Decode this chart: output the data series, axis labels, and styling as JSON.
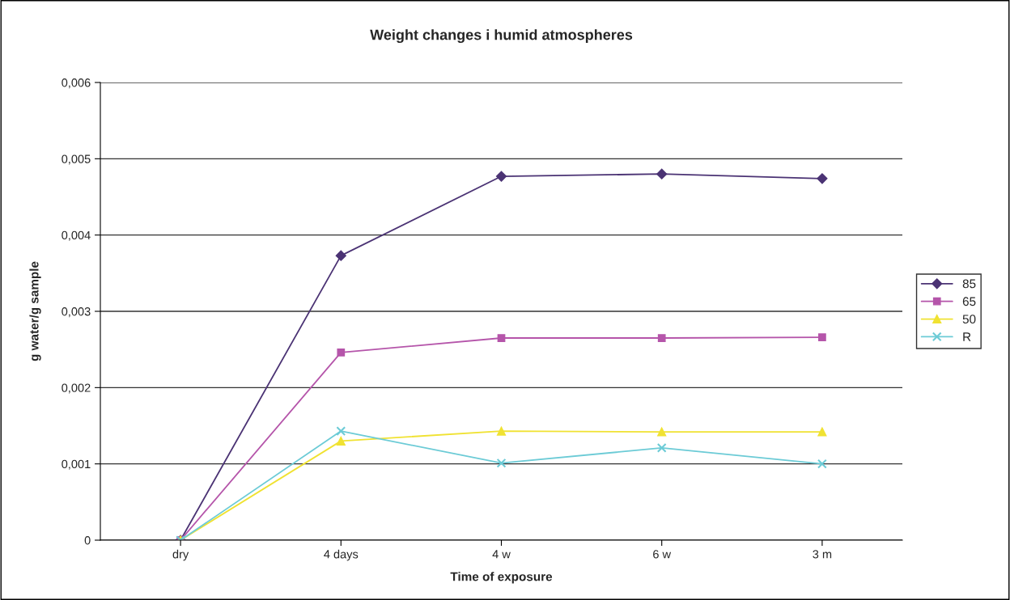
{
  "chart_data": {
    "type": "line",
    "title": "Weight changes i humid atmospheres",
    "xlabel": "Time of exposure",
    "ylabel": "g water/g sample",
    "categories": [
      "dry",
      "4 days",
      "4 w",
      "6 w",
      "3 m"
    ],
    "series": [
      {
        "name": "85",
        "color": "#4b3374",
        "marker": "diamond",
        "values": [
          0,
          0.00373,
          0.00477,
          0.0048,
          0.00474
        ]
      },
      {
        "name": "65",
        "color": "#b555aa",
        "marker": "square",
        "values": [
          0,
          0.00246,
          0.00265,
          0.00265,
          0.00266
        ]
      },
      {
        "name": "50",
        "color": "#f0e232",
        "marker": "triangle",
        "values": [
          0,
          0.0013,
          0.00143,
          0.00142,
          0.00142
        ]
      },
      {
        "name": "R",
        "color": "#6ccbd6",
        "marker": "cross",
        "values": [
          0,
          0.00143,
          0.00101,
          0.00121,
          0.001
        ]
      }
    ],
    "ylim": [
      0,
      0.006
    ],
    "yticks": [
      0,
      {
        "value": 0.001,
        "label": "0,001"
      },
      {
        "value": 0.002,
        "label": "0,002"
      },
      {
        "value": 0.003,
        "label": "0,003"
      },
      {
        "value": 0.004,
        "label": "0,004"
      },
      {
        "value": 0.005,
        "label": "0,005"
      },
      {
        "value": 0.006,
        "label": "0,006"
      }
    ],
    "grid": "y",
    "legend": "right"
  }
}
